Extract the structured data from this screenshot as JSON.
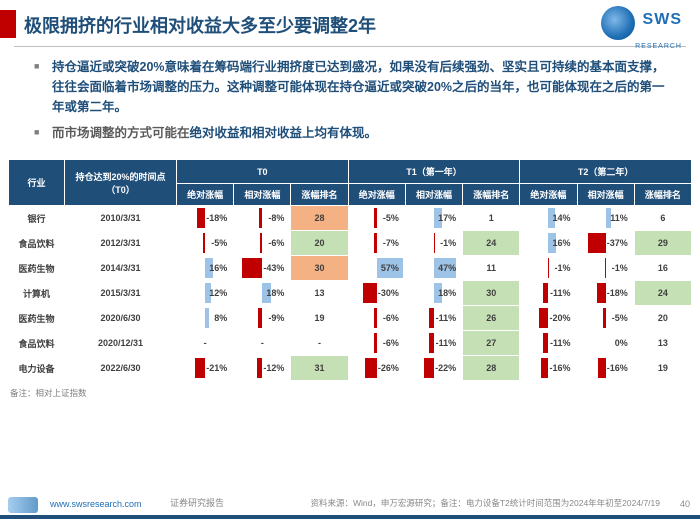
{
  "header": {
    "title": "极限拥挤的行业相对收益大多至少要调整2年",
    "logo_text": "SWS",
    "logo_sub": "RESEARCH"
  },
  "bullets": {
    "b1": "持仓逼近或突破20%意味着在筹码端行业拥挤度已达到盛况，如果没有后续强劲、坚实且可持续的基本面支撑，往往会面临着市场调整的压力。这种调整可能体现在持仓逼近或突破20%之后的当年，也可能体现在之后的第一年或第二年。",
    "b2_plain": "而市场调整的方式可能在",
    "b2_hl": "绝对收益和相对收益上均有体现。"
  },
  "table": {
    "col_ind": "行业",
    "col_t0p": "持仓达到20%的时间点（T0）",
    "g_t0": "T0",
    "g_t1": "T1（第一年）",
    "g_t2": "T2（第二年）",
    "sub_abs": "绝对涨幅",
    "sub_rel": "相对涨幅",
    "sub_rank": "涨幅排名",
    "colors": {
      "header": "#1f4e79",
      "pos_abs": "#9dc3e6",
      "neg_abs": "#c00000",
      "pos_rel": "#9dc3e6",
      "neg_rel": "#c00000",
      "rank_good": "#c5e0b4",
      "rank_bad": "#f4b183",
      "rank_neutral": "#ffffff"
    },
    "rows": [
      {
        "ind": "银行",
        "date": "2010/3/31",
        "t0": {
          "abs": -18,
          "rel": -8,
          "rank": 28,
          "rank_c": "bad"
        },
        "t1": {
          "abs": -5,
          "rel": 17,
          "rank": 1,
          "rank_c": "neu"
        },
        "t2": {
          "abs": 14,
          "rel": 11,
          "rank": 6,
          "rank_c": "neu"
        }
      },
      {
        "ind": "食品饮料",
        "date": "2012/3/31",
        "t0": {
          "abs": -5,
          "rel": -6,
          "rank": 20,
          "rank_c": "good"
        },
        "t1": {
          "abs": -7,
          "rel": -1,
          "rank": 24,
          "rank_c": "good"
        },
        "t2": {
          "abs": 16,
          "rel": -37,
          "rank": 29,
          "rank_c": "good"
        }
      },
      {
        "ind": "医药生物",
        "date": "2014/3/31",
        "t0": {
          "abs": 16,
          "rel": -43,
          "rank": 30,
          "rank_c": "bad"
        },
        "t1": {
          "abs": 57,
          "rel": 47,
          "rank": 11,
          "rank_c": "neu"
        },
        "t2": {
          "abs": -1,
          "rel": -1,
          "rank": 16,
          "rank_c": "neu"
        }
      },
      {
        "ind": "计算机",
        "date": "2015/3/31",
        "t0": {
          "abs": 12,
          "rel": 18,
          "rank": 13,
          "rank_c": "neu"
        },
        "t1": {
          "abs": -30,
          "rel": 18,
          "rank": 30,
          "rank_c": "good"
        },
        "t2": {
          "abs": -11,
          "rel": -18,
          "rank": 24,
          "rank_c": "good"
        }
      },
      {
        "ind": "医药生物",
        "date": "2020/6/30",
        "t0": {
          "abs": 8,
          "rel": -9,
          "rank": 19,
          "rank_c": "neu"
        },
        "t1": {
          "abs": -6,
          "rel": -11,
          "rank": 26,
          "rank_c": "good"
        },
        "t2": {
          "abs": -20,
          "rel": -5,
          "rank": 20,
          "rank_c": "neu"
        }
      },
      {
        "ind": "食品饮料",
        "date": "2020/12/31",
        "t0": {
          "abs": null,
          "rel": null,
          "rank": null,
          "rank_c": "neu"
        },
        "t1": {
          "abs": -6,
          "rel": -11,
          "rank": 27,
          "rank_c": "good"
        },
        "t2": {
          "abs": -11,
          "rel": 0,
          "rank": 13,
          "rank_c": "neu"
        }
      },
      {
        "ind": "电力设备",
        "date": "2022/6/30",
        "t0": {
          "abs": -21,
          "rel": -12,
          "rank": 31,
          "rank_c": "good"
        },
        "t1": {
          "abs": -26,
          "rel": -22,
          "rank": 28,
          "rank_c": "good"
        },
        "t2": {
          "abs": -16,
          "rel": -16,
          "rank": 19,
          "rank_c": "neu"
        }
      }
    ],
    "note": "备注：相对上证指数"
  },
  "footer": {
    "url": "www.swsresearch.com",
    "label": "证券研究报告",
    "source": "资料来源：Wind，申万宏源研究；备注：电力设备T2统计时间范围为2024年年初至2024/7/19",
    "page": "40"
  }
}
